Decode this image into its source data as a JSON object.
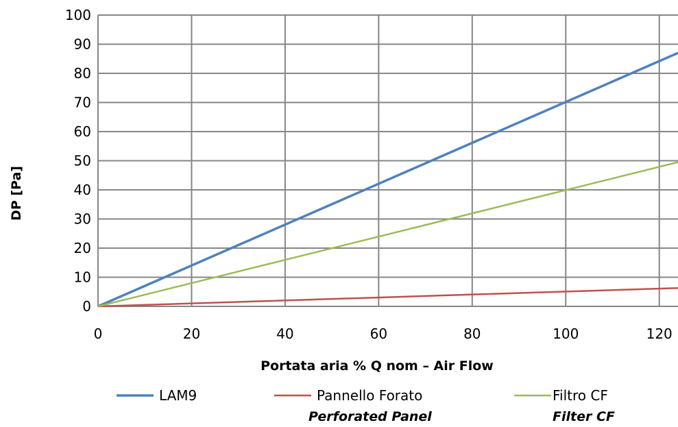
{
  "chart_data": {
    "type": "line",
    "xlabel": "Portata aria % Q nom – Air Flow",
    "ylabel": "DP [Pa]",
    "xlim": [
      0,
      124
    ],
    "ylim": [
      0,
      100
    ],
    "x_ticks": [
      0,
      20,
      40,
      60,
      80,
      100,
      120
    ],
    "y_ticks": [
      0,
      10,
      20,
      30,
      40,
      50,
      60,
      70,
      80,
      90,
      100
    ],
    "grid": true,
    "legend_position": "bottom",
    "series": [
      {
        "name": "LAM9",
        "subname": "",
        "color": "#4f81bd",
        "x": [
          0,
          124
        ],
        "y": [
          0,
          87
        ]
      },
      {
        "name": "Pannello Forato",
        "subname": "Perforated Panel",
        "color": "#c0504d",
        "x": [
          0,
          124
        ],
        "y": [
          0,
          6.3
        ]
      },
      {
        "name": "Filtro CF",
        "subname": "Filter CF",
        "color": "#9bbb59",
        "x": [
          0,
          124
        ],
        "y": [
          0,
          49.5
        ]
      }
    ]
  }
}
